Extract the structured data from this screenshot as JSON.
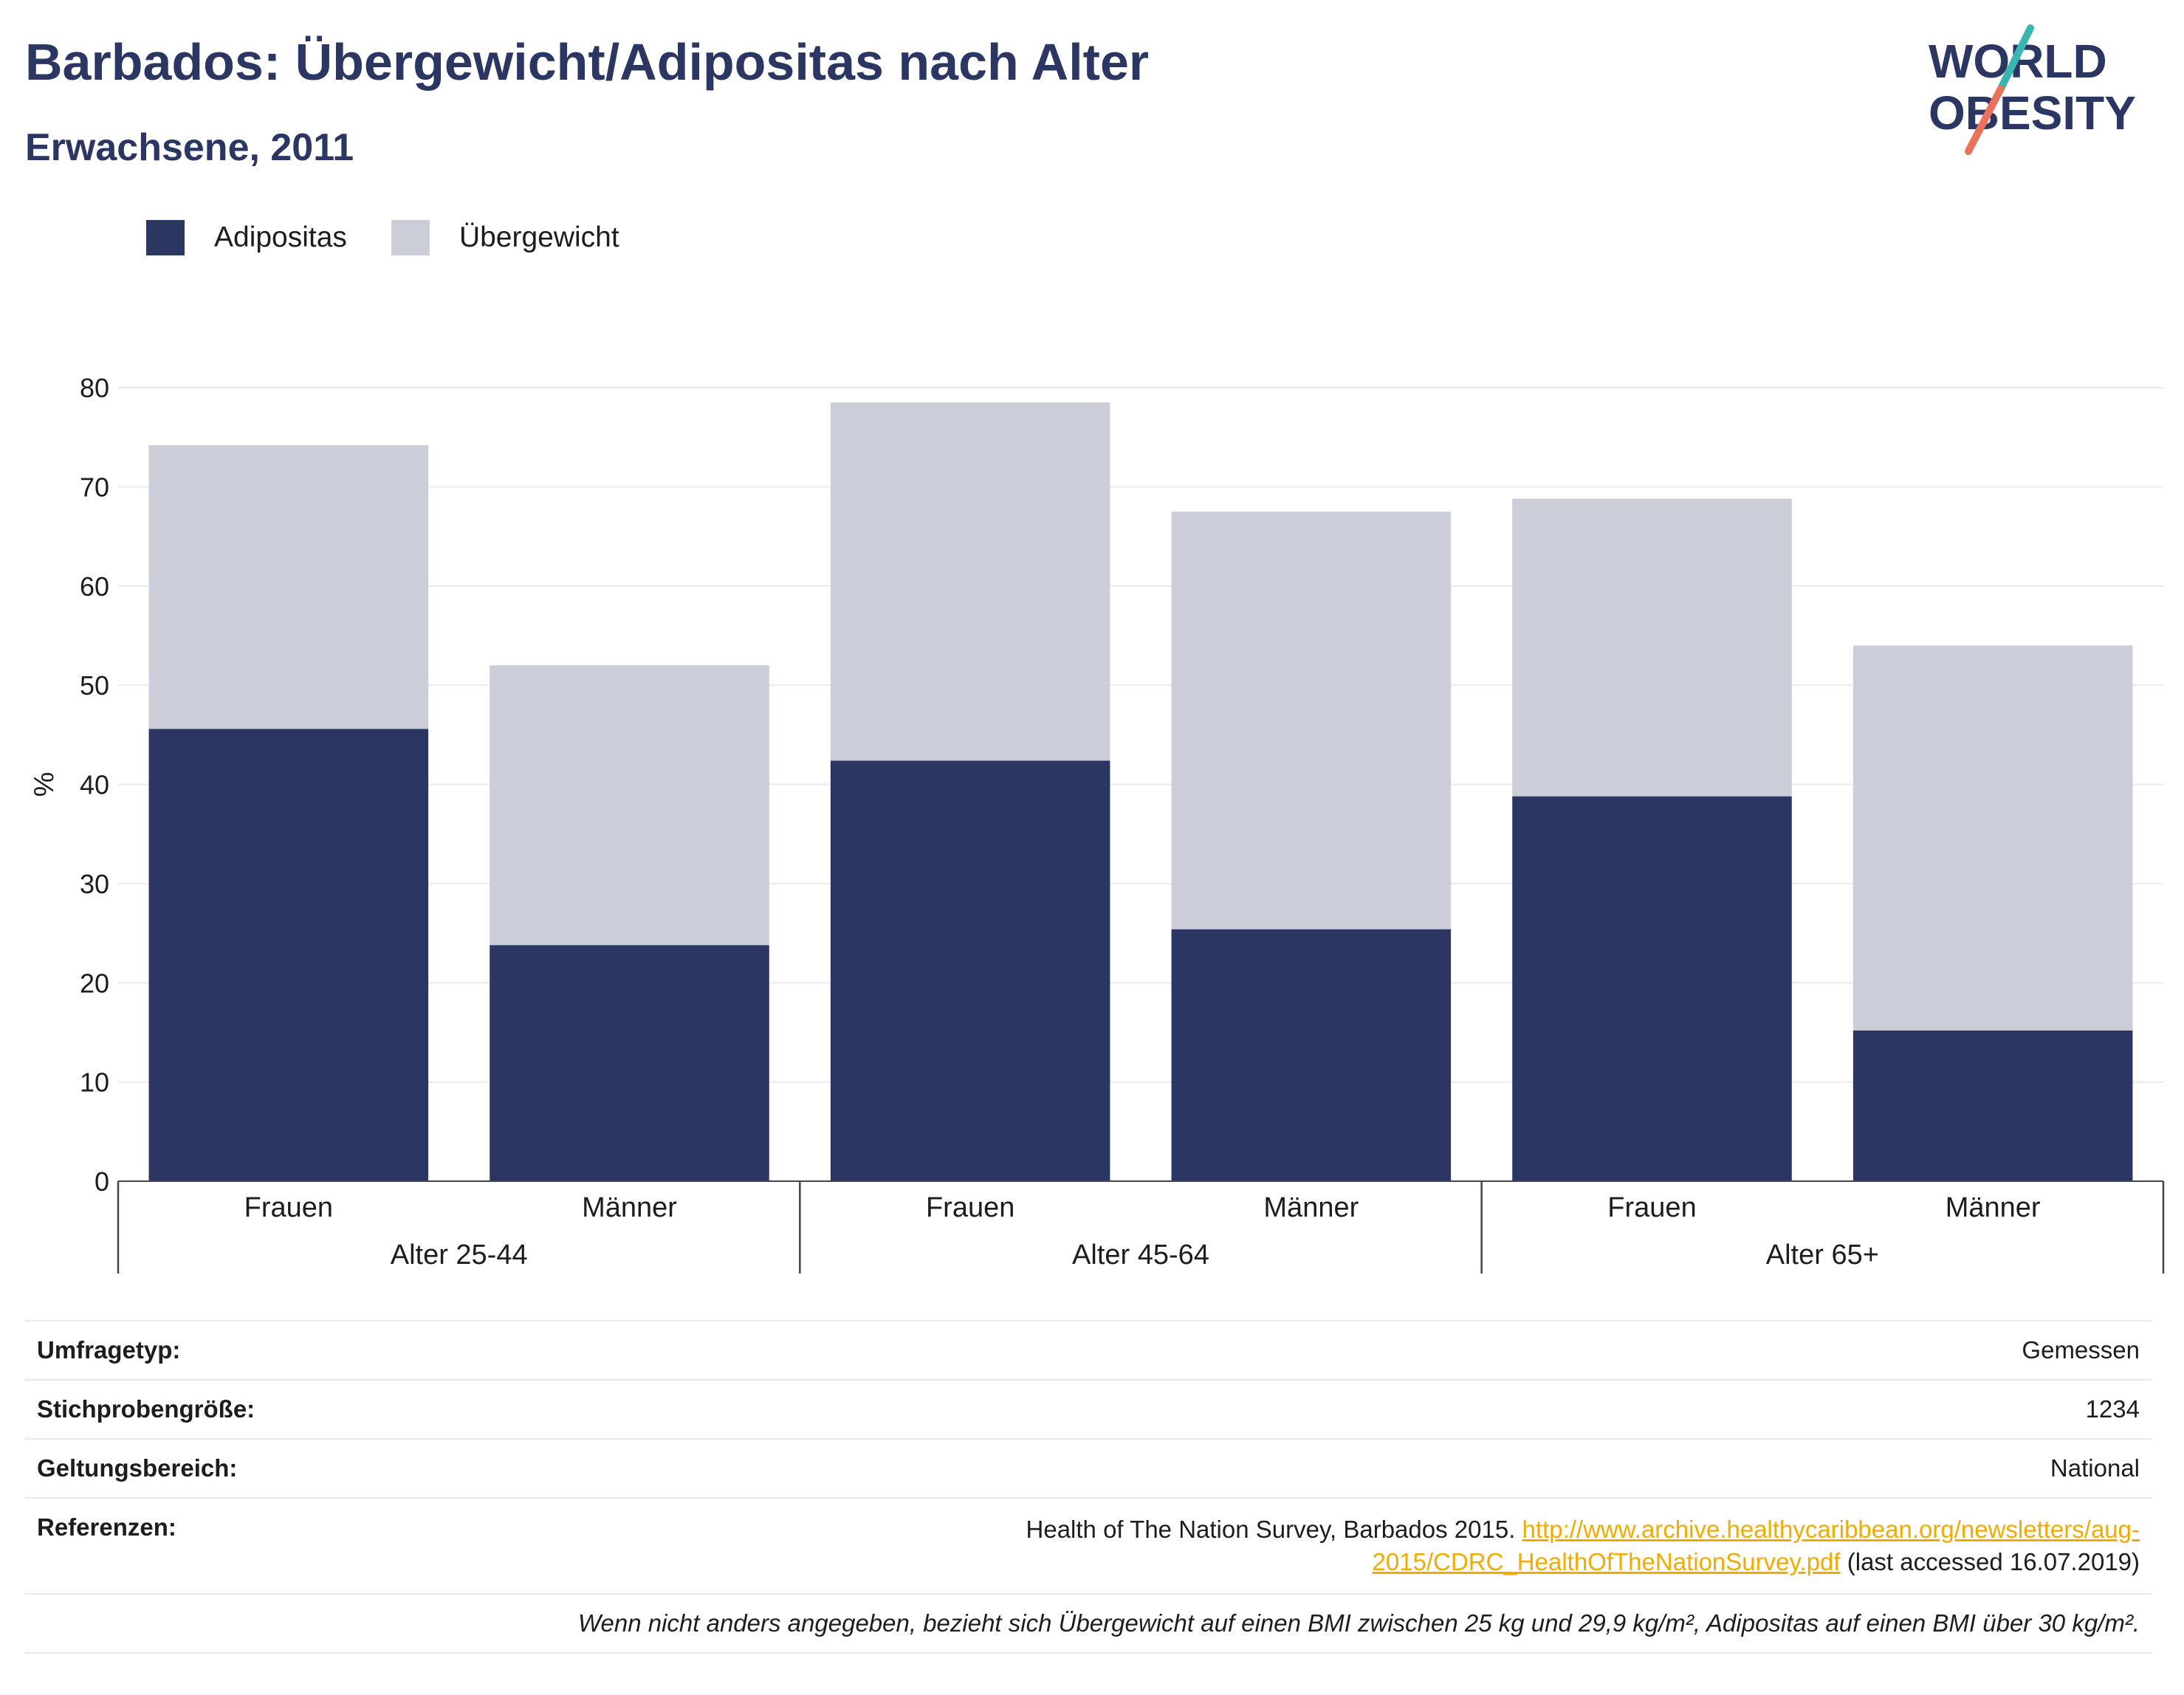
{
  "header": {
    "title": "Barbados: Übergewicht/Adipositas nach Alter",
    "subtitle": "Erwachsene, 2011"
  },
  "logo": {
    "line1": "WORLD",
    "line2": "OBESITY",
    "colors": {
      "text": "#2b3762",
      "slash_teal": "#3bb5b0",
      "slash_coral": "#e8735a"
    }
  },
  "legend": [
    {
      "label": "Adipositas",
      "color": "#2b3762"
    },
    {
      "label": "Übergewicht",
      "color": "#cbcdd9"
    }
  ],
  "chart_data": {
    "type": "bar",
    "stacked": true,
    "title": "",
    "xlabel": "",
    "ylabel": "%",
    "ylim": [
      0,
      80
    ],
    "yticks": [
      0,
      10,
      20,
      30,
      40,
      50,
      60,
      70,
      80
    ],
    "grid": true,
    "legend_position": "top-left",
    "groups": [
      "Alter 25-44",
      "Alter 45-64",
      "Alter 65+"
    ],
    "categories": [
      "Frauen",
      "Männer",
      "Frauen",
      "Männer",
      "Frauen",
      "Männer"
    ],
    "category_group": [
      0,
      0,
      1,
      1,
      2,
      2
    ],
    "series": [
      {
        "name": "Adipositas",
        "color": "#2b3762",
        "values": [
          45.6,
          23.8,
          42.4,
          25.4,
          38.8,
          15.2
        ]
      },
      {
        "name": "Übergewicht",
        "color": "#cbcdd9",
        "values": [
          28.6,
          28.2,
          36.1,
          42.1,
          30.0,
          38.8
        ]
      }
    ]
  },
  "info": {
    "rows": [
      {
        "label": "Umfragetyp:",
        "value": "Gemessen"
      },
      {
        "label": "Stichprobengröße:",
        "value": "1234"
      },
      {
        "label": "Geltungsbereich:",
        "value": "National"
      }
    ],
    "references": {
      "label": "Referenzen:",
      "text_before": "Health of The Nation Survey, Barbados 2015. ",
      "link": "http://www.archive.healthycaribbean.org/newsletters/aug-2015/CDRC_HealthOfTheNationSurvey.pdf",
      "text_after": " (last accessed 16.07.2019)"
    },
    "note": "Wenn nicht anders angegeben, bezieht sich Übergewicht auf einen BMI zwischen 25 kg und 29,9 kg/m², Adipositas auf einen BMI über 30 kg/m²."
  }
}
